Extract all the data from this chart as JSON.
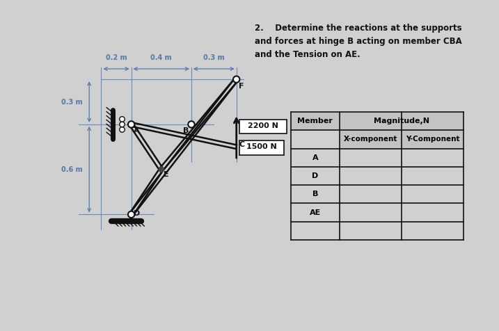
{
  "bg_color": "#d0d0d0",
  "title_text": "2.    Determine the reactions at the supports\nand forces at hinge B acting on member CBA\nand the Tension on AE.",
  "table_rows": [
    "A",
    "D",
    "B",
    "AE",
    ""
  ],
  "dim_labels_h": [
    "0.2 m",
    "0.4 m",
    "0.3 m"
  ],
  "dim_labels_v": [
    "0.6 m",
    "0.3 m"
  ],
  "force_labels": [
    "1500 N",
    "2200 N"
  ],
  "node_labels": [
    "D",
    "E",
    "B",
    "C",
    "A",
    "F"
  ],
  "line_color": "#111111",
  "dim_color": "#5577aa",
  "grid_color": "#6688bb",
  "lw_struct": 1.8,
  "lw_grid": 0.8,
  "scale": 230,
  "ox": 155,
  "oy": 370
}
